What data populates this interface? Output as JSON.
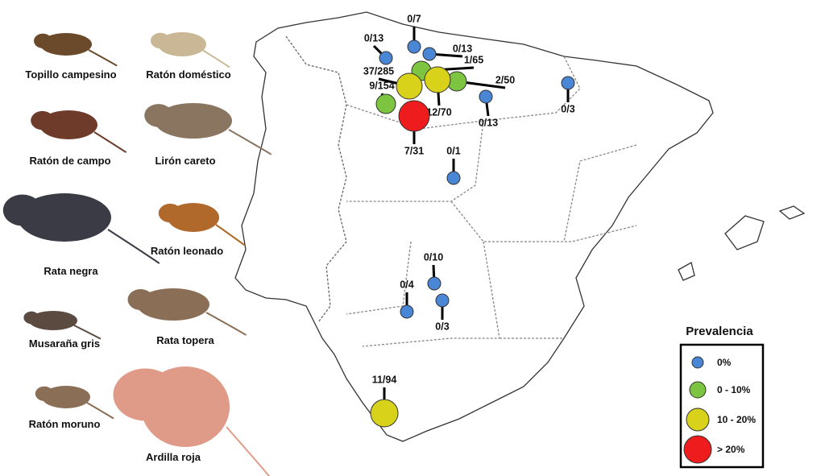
{
  "animals": [
    "Topillo campesino",
    "Ratón doméstico",
    "Ratón de campo",
    "Lirón careto",
    "Rata negra",
    "Ratón leonado",
    "Musaraña gris",
    "Rata topera",
    "Ratón moruno",
    "Ardilla roja"
  ],
  "sites": [
    {
      "label": "0/7",
      "color": "#4a86d6"
    },
    {
      "label": "0/13",
      "color": "#4a86d6"
    },
    {
      "label": "0/13",
      "color": "#4a86d6"
    },
    {
      "label": "1/65",
      "color": "#7dc540"
    },
    {
      "label": "37/285",
      "color": "#d8d21a"
    },
    {
      "label": "2/50",
      "color": "#7dc540"
    },
    {
      "label": "12/70",
      "color": "#d8d21a"
    },
    {
      "label": "9/154",
      "color": "#7dc540"
    },
    {
      "label": "7/31",
      "color": "#ee1c1c"
    },
    {
      "label": "0/13",
      "color": "#4a86d6"
    },
    {
      "label": "0/3",
      "color": "#4a86d6"
    },
    {
      "label": "0/1",
      "color": "#4a86d6"
    },
    {
      "label": "0/10",
      "color": "#4a86d6"
    },
    {
      "label": "0/4",
      "color": "#4a86d6"
    },
    {
      "label": "0/3",
      "color": "#4a86d6"
    },
    {
      "label": "11/94",
      "color": "#d8d21a"
    }
  ],
  "legend": {
    "title": "Prevalencia",
    "items": [
      {
        "label": "0%",
        "color": "#4a86d6"
      },
      {
        "label": "0 - 10%",
        "color": "#7dc540"
      },
      {
        "label": "10 - 20%",
        "color": "#d8d21a"
      },
      {
        "label": "> 20%",
        "color": "#ee1c1c"
      }
    ]
  }
}
